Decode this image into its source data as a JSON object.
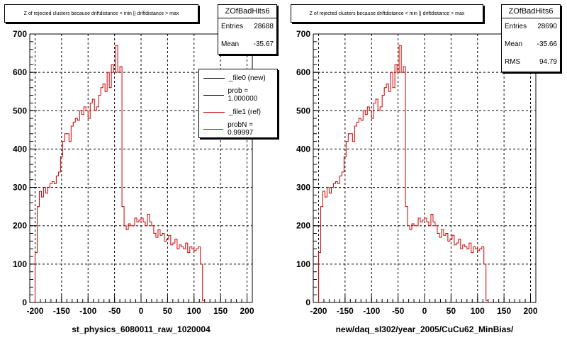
{
  "footer": "",
  "charts": [
    {
      "title": "Z of rejected clusters because driftdistance < min || driftdistance > max",
      "stats": {
        "name": "ZOfBadHits6",
        "entries_label": "Entries",
        "entries": "28688",
        "mean_label": "Mean",
        "mean": "-35.67"
      },
      "legend": [
        {
          "label": "_file0 (new)",
          "color": "#000000"
        },
        {
          "label": "prob = 1.000000",
          "color": "#000000"
        },
        {
          "label": "_file1 (ref)",
          "color": "#cc0000"
        },
        {
          "label": "probN = 0.99997",
          "color": "#cc0000"
        }
      ],
      "xlabel": "st_physics_6080011_raw_1020004"
    },
    {
      "title": "Z of rejected clusters because driftdistance < min || driftdistance > max",
      "stats": {
        "name": "ZOfBadHits6",
        "entries_label": "Entries",
        "entries": "28690",
        "mean_label": "Mean",
        "mean": "-35.66",
        "rms_label": "RMS",
        "rms": "94.79"
      },
      "xlabel": "new/daq_sl302/year_2005/CuCu62_MinBias/"
    }
  ],
  "chart_data": [
    {
      "type": "histogram",
      "title": "Z of rejected clusters because driftdistance < min || driftdistance > max",
      "xlabel": "st_physics_6080011_raw_1020004",
      "ylabel": "",
      "xlim": [
        -210,
        210
      ],
      "ylim": [
        0,
        700
      ],
      "xticks": [
        "-200",
        "-150",
        "-100",
        "-50",
        "0",
        "50",
        "100",
        "150",
        "200"
      ],
      "yticks": [
        "0",
        "100",
        "200",
        "300",
        "400",
        "500",
        "600",
        "700"
      ],
      "grid": true,
      "bin_start": -200,
      "bin_width": 4,
      "series": [
        {
          "name": "_file1 (ref)",
          "color": "#cc0000",
          "values": [
            130,
            250,
            290,
            275,
            300,
            285,
            300,
            310,
            315,
            310,
            330,
            340,
            380,
            420,
            440,
            440,
            420,
            460,
            470,
            480,
            475,
            500,
            490,
            510,
            500,
            480,
            520,
            530,
            500,
            510,
            540,
            560,
            570,
            550,
            600,
            560,
            620,
            600,
            670,
            600,
            615,
            250,
            200,
            190,
            205,
            200,
            200,
            220,
            210,
            215,
            220,
            210,
            200,
            230,
            210,
            200,
            180,
            170,
            190,
            175,
            180,
            160,
            165,
            175,
            150,
            155,
            165,
            140,
            150,
            145,
            140,
            155,
            130,
            145,
            140,
            135,
            140,
            145,
            100,
            5
          ]
        }
      ]
    },
    {
      "type": "histogram",
      "title": "Z of rejected clusters because driftdistance < min || driftdistance > max",
      "xlabel": "new/daq_sl302/year_2005/CuCu62_MinBias/",
      "ylabel": "",
      "xlim": [
        -210,
        210
      ],
      "ylim": [
        0,
        700
      ],
      "xticks": [
        "-200",
        "-150",
        "-100",
        "-50",
        "0",
        "50",
        "100",
        "150",
        "200"
      ],
      "yticks": [
        "0",
        "100",
        "200",
        "300",
        "400",
        "500",
        "600",
        "700"
      ],
      "grid": true,
      "bin_start": -200,
      "bin_width": 4,
      "series": [
        {
          "name": "",
          "color": "#cc0000",
          "values": [
            130,
            250,
            290,
            275,
            300,
            285,
            300,
            310,
            315,
            310,
            330,
            340,
            380,
            420,
            440,
            440,
            420,
            460,
            470,
            480,
            475,
            500,
            490,
            510,
            500,
            480,
            520,
            530,
            500,
            510,
            540,
            560,
            570,
            550,
            600,
            560,
            620,
            600,
            670,
            600,
            615,
            250,
            200,
            190,
            205,
            200,
            200,
            220,
            210,
            215,
            220,
            210,
            200,
            230,
            210,
            200,
            180,
            170,
            190,
            175,
            180,
            160,
            165,
            175,
            150,
            155,
            165,
            140,
            150,
            145,
            140,
            155,
            130,
            145,
            140,
            135,
            140,
            145,
            100,
            5
          ]
        }
      ]
    }
  ]
}
